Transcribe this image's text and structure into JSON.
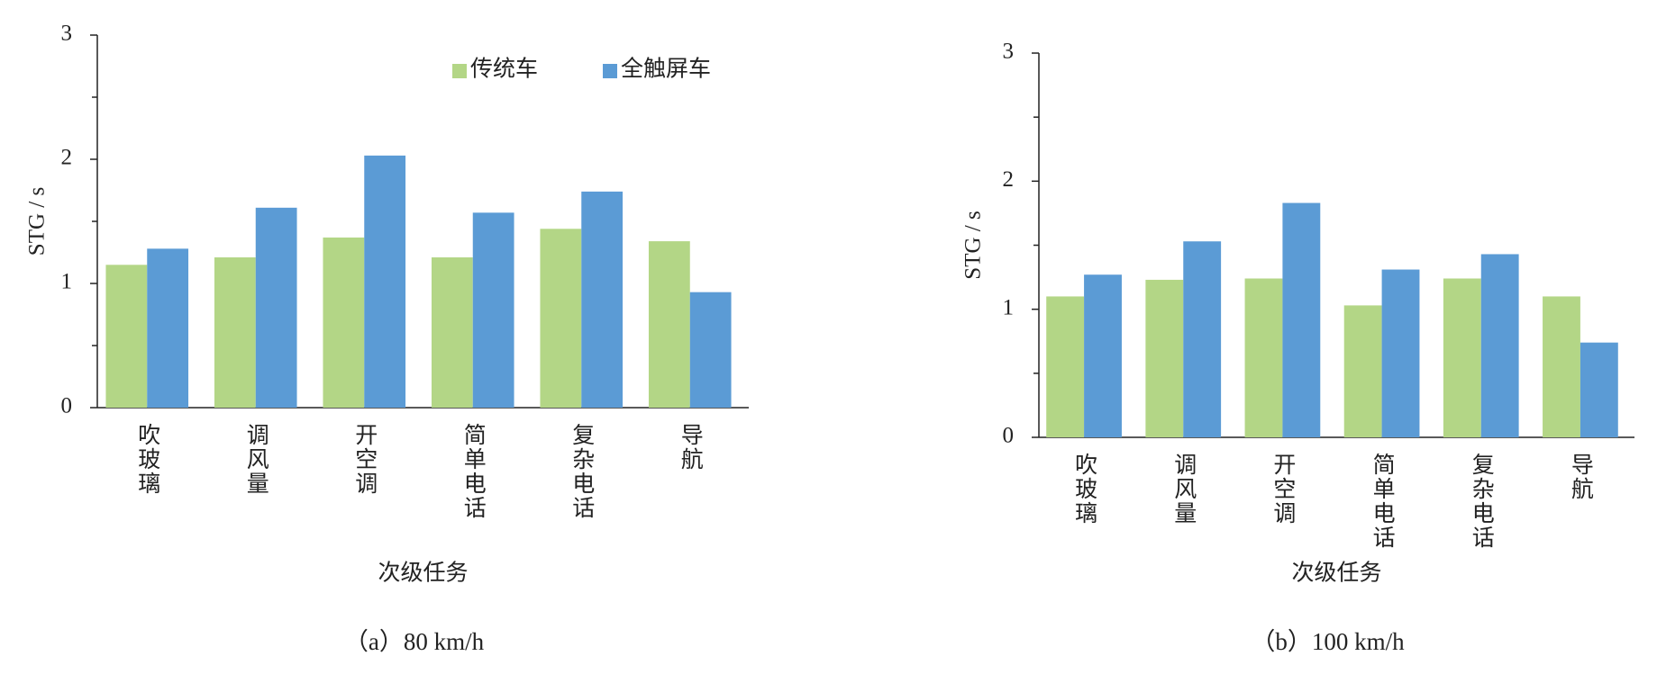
{
  "chart_data": [
    {
      "type": "bar",
      "caption": "（a）80 km/h",
      "xlabel": "次级任务",
      "ylabel": "STG / s",
      "categories": [
        "吹玻璃",
        "调风量",
        "开空调",
        "简单电话",
        "复杂电话",
        "导航"
      ],
      "series": [
        {
          "name": "传统车",
          "color": "#b3d686",
          "values": [
            1.15,
            1.21,
            1.37,
            1.21,
            1.44,
            1.34
          ]
        },
        {
          "name": "全触屏车",
          "color": "#5b9bd5",
          "values": [
            1.28,
            1.61,
            2.03,
            1.57,
            1.74,
            0.93
          ]
        }
      ],
      "ylim": [
        0,
        3
      ],
      "yticks": [
        0,
        1,
        2,
        3
      ],
      "yminorticks": [
        0.5,
        1.5,
        2.5
      ],
      "legend": "top"
    },
    {
      "type": "bar",
      "caption": "（b）100 km/h",
      "xlabel": "次级任务",
      "ylabel": "STG / s",
      "categories": [
        "吹玻璃",
        "调风量",
        "开空调",
        "简单电话",
        "复杂电话",
        "导航"
      ],
      "series": [
        {
          "color": "#b3d686",
          "values": [
            1.1,
            1.23,
            1.24,
            1.03,
            1.24,
            1.1
          ]
        },
        {
          "color": "#5b9bd5",
          "values": [
            1.27,
            1.53,
            1.83,
            1.31,
            1.43,
            0.74
          ]
        }
      ],
      "ylim": [
        0,
        3
      ],
      "yticks": [
        0,
        1,
        2,
        3
      ],
      "yminorticks": [
        0.5,
        1.5,
        2.5
      ],
      "legend": false
    }
  ]
}
